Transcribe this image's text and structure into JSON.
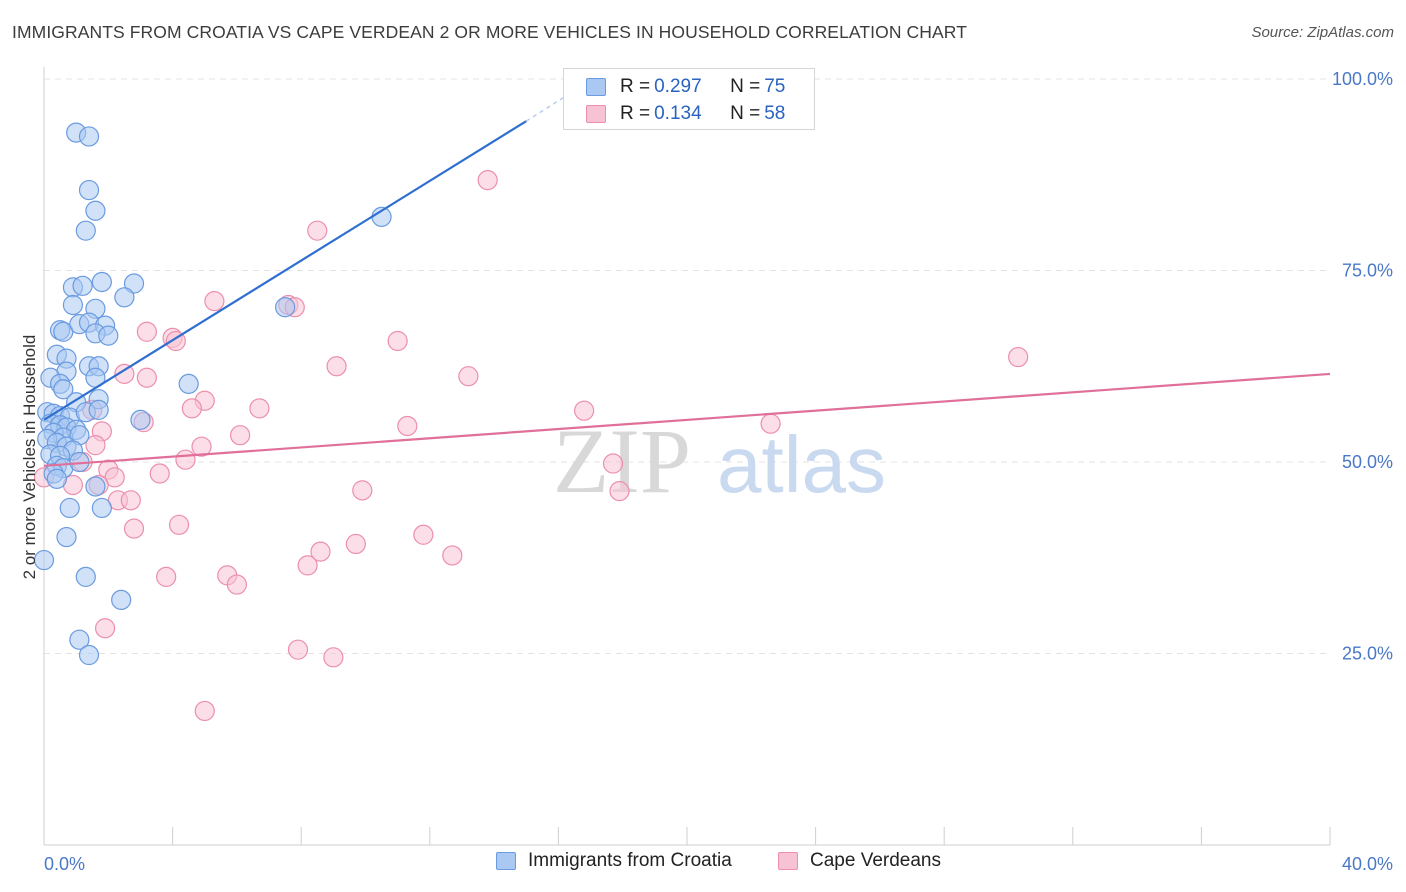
{
  "title": "IMMIGRANTS FROM CROATIA VS CAPE VERDEAN 2 OR MORE VEHICLES IN HOUSEHOLD CORRELATION CHART",
  "source": "Source: ZipAtlas.com",
  "watermark": {
    "zip": "ZIP",
    "atlas": "atlas"
  },
  "legend": {
    "series1": {
      "r_label": "R =",
      "r_value": "0.297",
      "n_label": "N =",
      "n_value": "75"
    },
    "series2": {
      "r_label": "R =",
      "r_value": "0.134",
      "n_label": "N =",
      "n_value": "58"
    }
  },
  "bottom_legend": {
    "series1": "Immigrants from Croatia",
    "series2": "Cape Verdeans"
  },
  "chart_data": {
    "type": "scatter",
    "title": "IMMIGRANTS FROM CROATIA VS CAPE VERDEAN 2 OR MORE VEHICLES IN HOUSEHOLD CORRELATION CHART",
    "xlabel": "",
    "ylabel": "2 or more Vehicles in Household",
    "xlim": [
      0,
      40
    ],
    "ylim": [
      0,
      100
    ],
    "x_tick_labels": [
      {
        "value": 0,
        "label": "0.0%"
      },
      {
        "value": 40,
        "label": "40.0%"
      }
    ],
    "y_tick_labels": [
      {
        "value": 100,
        "label": "100.0%"
      },
      {
        "value": 75,
        "label": "75.0%"
      },
      {
        "value": 50,
        "label": "50.0%"
      },
      {
        "value": 25,
        "label": "25.0%"
      }
    ],
    "grid": true,
    "series": [
      {
        "name": "Immigrants from Croatia",
        "color": "#6a9be0",
        "fill": "#a9c8f2",
        "line_color": "#2f6fd0",
        "trend": {
          "x": [
            0.0,
            15.0
          ],
          "y": [
            55.5,
            94.5
          ]
        },
        "trend_ext": {
          "x": [
            15.0,
            17.0
          ],
          "y": [
            94.5,
            99.8
          ]
        },
        "points": [
          [
            1.0,
            93.0
          ],
          [
            1.4,
            92.5
          ],
          [
            1.4,
            85.5
          ],
          [
            1.6,
            82.8
          ],
          [
            1.3,
            80.2
          ],
          [
            10.5,
            82.0
          ],
          [
            0.9,
            72.8
          ],
          [
            1.2,
            73.0
          ],
          [
            1.8,
            73.5
          ],
          [
            2.8,
            73.3
          ],
          [
            2.5,
            71.5
          ],
          [
            0.9,
            70.5
          ],
          [
            1.6,
            70.0
          ],
          [
            0.5,
            67.2
          ],
          [
            0.6,
            67.0
          ],
          [
            1.1,
            68.0
          ],
          [
            1.4,
            68.2
          ],
          [
            1.9,
            67.8
          ],
          [
            1.6,
            66.8
          ],
          [
            2.0,
            66.5
          ],
          [
            7.5,
            70.2
          ],
          [
            0.4,
            64.0
          ],
          [
            0.7,
            63.5
          ],
          [
            1.4,
            62.5
          ],
          [
            1.7,
            62.5
          ],
          [
            0.7,
            61.8
          ],
          [
            1.6,
            61.0
          ],
          [
            0.2,
            61.0
          ],
          [
            0.5,
            60.2
          ],
          [
            4.5,
            60.2
          ],
          [
            0.6,
            59.5
          ],
          [
            1.7,
            58.2
          ],
          [
            1.0,
            57.8
          ],
          [
            0.1,
            56.5
          ],
          [
            0.3,
            56.3
          ],
          [
            0.5,
            56.0
          ],
          [
            0.8,
            55.8
          ],
          [
            1.3,
            56.5
          ],
          [
            1.7,
            56.8
          ],
          [
            3.0,
            55.5
          ],
          [
            0.2,
            55.0
          ],
          [
            0.5,
            54.8
          ],
          [
            0.7,
            54.5
          ],
          [
            1.0,
            54.2
          ],
          [
            0.3,
            53.8
          ],
          [
            0.6,
            53.2
          ],
          [
            1.1,
            53.5
          ],
          [
            0.1,
            53.0
          ],
          [
            0.4,
            52.5
          ],
          [
            0.7,
            52.0
          ],
          [
            0.9,
            51.5
          ],
          [
            0.2,
            51.0
          ],
          [
            0.5,
            50.8
          ],
          [
            0.4,
            49.5
          ],
          [
            0.6,
            49.2
          ],
          [
            1.1,
            50.0
          ],
          [
            0.3,
            48.5
          ],
          [
            0.4,
            47.8
          ],
          [
            1.6,
            46.8
          ],
          [
            0.8,
            44.0
          ],
          [
            1.8,
            44.0
          ],
          [
            0.7,
            40.2
          ],
          [
            0.0,
            37.2
          ],
          [
            1.3,
            35.0
          ],
          [
            2.4,
            32.0
          ],
          [
            1.1,
            26.8
          ],
          [
            1.4,
            24.8
          ]
        ]
      },
      {
        "name": "Cape Verdeans",
        "color": "#ec8fae",
        "fill": "#f7c3d4",
        "line_color": "#e0709a",
        "trend": {
          "x": [
            0.0,
            40.0
          ],
          "y": [
            49.5,
            61.5
          ]
        },
        "points": [
          [
            13.8,
            86.8
          ],
          [
            8.5,
            80.2
          ],
          [
            5.3,
            71.0
          ],
          [
            7.6,
            70.5
          ],
          [
            7.8,
            70.2
          ],
          [
            11.0,
            65.8
          ],
          [
            3.2,
            67.0
          ],
          [
            4.0,
            66.2
          ],
          [
            4.1,
            65.8
          ],
          [
            30.3,
            63.7
          ],
          [
            9.1,
            62.5
          ],
          [
            2.5,
            61.5
          ],
          [
            3.2,
            61.0
          ],
          [
            13.2,
            61.2
          ],
          [
            5.0,
            58.0
          ],
          [
            4.6,
            57.0
          ],
          [
            6.7,
            57.0
          ],
          [
            16.8,
            56.7
          ],
          [
            1.5,
            56.8
          ],
          [
            3.1,
            55.2
          ],
          [
            11.3,
            54.7
          ],
          [
            22.6,
            55.0
          ],
          [
            1.8,
            54.0
          ],
          [
            6.1,
            53.5
          ],
          [
            1.6,
            52.2
          ],
          [
            4.9,
            52.0
          ],
          [
            4.4,
            50.3
          ],
          [
            1.2,
            50.0
          ],
          [
            17.7,
            49.8
          ],
          [
            2.0,
            49.0
          ],
          [
            3.6,
            48.5
          ],
          [
            2.2,
            48.0
          ],
          [
            0.0,
            48.0
          ],
          [
            0.9,
            47.0
          ],
          [
            1.7,
            47.0
          ],
          [
            9.9,
            46.3
          ],
          [
            17.9,
            46.2
          ],
          [
            2.3,
            45.0
          ],
          [
            2.7,
            45.0
          ],
          [
            4.2,
            41.8
          ],
          [
            2.8,
            41.3
          ],
          [
            11.8,
            40.5
          ],
          [
            9.7,
            39.3
          ],
          [
            8.6,
            38.3
          ],
          [
            12.7,
            37.8
          ],
          [
            8.2,
            36.5
          ],
          [
            3.8,
            35.0
          ],
          [
            5.7,
            35.2
          ],
          [
            6.0,
            34.0
          ],
          [
            1.9,
            28.3
          ],
          [
            7.9,
            25.5
          ],
          [
            9.0,
            24.5
          ],
          [
            5.0,
            17.5
          ]
        ]
      }
    ]
  }
}
